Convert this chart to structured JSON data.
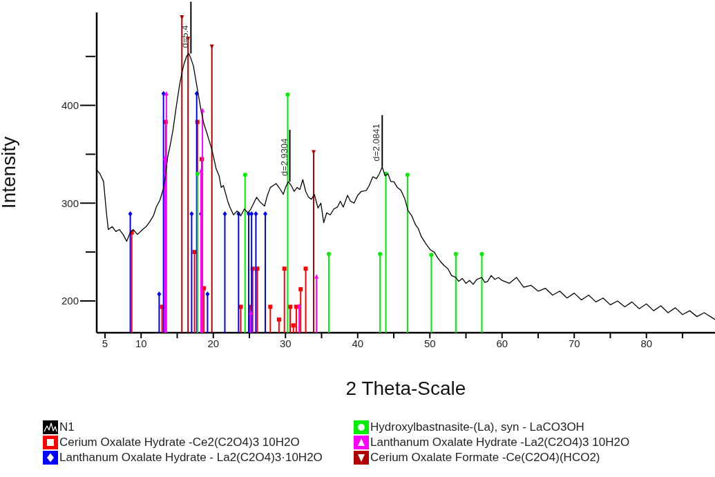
{
  "chart_data": {
    "type": "line",
    "xlabel": "2 Theta-Scale",
    "ylabel": "Intensity",
    "xlim": [
      3.85,
      89.5
    ],
    "ylim": [
      167.5,
      495
    ],
    "xticks": [
      5,
      10,
      {
        "value": 15,
        "label": null
      },
      20,
      {
        "value": 25,
        "label": null
      },
      30,
      {
        "value": 35,
        "label": null
      },
      40,
      {
        "value": 45,
        "label": null
      },
      50,
      {
        "value": 55,
        "label": null
      },
      60,
      {
        "value": 65,
        "label": null
      },
      70,
      {
        "value": 75,
        "label": null
      },
      80,
      {
        "value": 85,
        "label": null
      }
    ],
    "yticks": [
      200,
      {
        "value": 250,
        "label": null
      },
      300,
      {
        "value": 350,
        "label": null
      },
      400,
      {
        "value": 450,
        "label": null
      }
    ],
    "legend": "bottom",
    "annotations": [
      {
        "text": "d=5.4",
        "x": 16.9,
        "y": 453
      },
      {
        "text": "d=2.9304",
        "x": 30.6,
        "y": 322
      },
      {
        "text": "d=2.0841",
        "x": 43.4,
        "y": 337
      }
    ],
    "series": [
      {
        "name": "N1",
        "type": "line",
        "color": "#000000",
        "x": [
          3.85,
          4.3,
          4.8,
          5.2,
          5.45,
          6.0,
          6.5,
          7.0,
          7.5,
          8.0,
          8.5,
          8.9,
          9.5,
          10.2,
          10.7,
          11.2,
          11.7,
          12.1,
          12.6,
          13.1,
          13.4,
          13.7,
          14.0,
          14.4,
          14.86,
          15.33,
          15.7,
          15.97,
          16.3,
          16.6,
          16.9,
          17.25,
          17.6,
          17.9,
          18.3,
          18.7,
          19.1,
          19.5,
          19.8,
          20.4,
          20.8,
          21.1,
          21.4,
          21.7,
          22.0,
          22.3,
          22.8,
          23.3,
          23.8,
          24.3,
          24.8,
          25.2,
          25.6,
          26.0,
          26.5,
          27.1,
          27.5,
          27.9,
          28.3,
          28.7,
          29.2,
          29.7,
          30.0,
          30.4,
          30.8,
          31.2,
          31.6,
          32.0,
          32.4,
          32.8,
          33.2,
          33.6,
          34.0,
          34.5,
          34.9,
          35.3,
          35.7,
          36.2,
          36.7,
          37.2,
          37.6,
          38.0,
          38.6,
          39.0,
          39.5,
          40.0,
          40.5,
          41.2,
          41.6,
          42.1,
          42.6,
          43.0,
          43.4,
          43.8,
          44.2,
          44.6,
          45.0,
          45.5,
          46.0,
          46.5,
          47.0,
          47.5,
          48.0,
          48.4,
          48.8,
          49.5,
          50.1,
          50.6,
          51.0,
          51.5,
          52.0,
          52.5,
          53.0,
          53.6,
          54.0,
          54.5,
          55.0,
          55.5,
          56.0,
          56.5,
          57.2,
          57.6,
          58.0,
          58.5,
          59.0,
          59.5,
          60.0,
          61,
          62,
          63,
          64,
          65,
          66,
          67,
          68,
          69,
          70,
          71,
          72,
          73,
          74,
          75,
          76,
          77,
          78,
          79,
          80,
          81,
          82,
          83,
          84,
          85,
          86,
          87,
          88,
          89.5
        ],
        "values": [
          334,
          330,
          322,
          290,
          273,
          276,
          271,
          273,
          268,
          261,
          270,
          273,
          268,
          273,
          276,
          281,
          287,
          296,
          303,
          315,
          330,
          348,
          358,
          374,
          398,
          421,
          435,
          443,
          450,
          453,
          448,
          440,
          425,
          412,
          395,
          381,
          372,
          362,
          355,
          335,
          328,
          316,
          318,
          310,
          302,
          296,
          288,
          292,
          287,
          294,
          290,
          294,
          300,
          306,
          301,
          297,
          308,
          316,
          318,
          320,
          315,
          309,
          316,
          322,
          318,
          312,
          316,
          314,
          324,
          312,
          306,
          304,
          309,
          295,
          300,
          280,
          290,
          288,
          294,
          296,
          302,
          296,
          308,
          302,
          300,
          308,
          312,
          313,
          318,
          327,
          325,
          330,
          337,
          328,
          330,
          322,
          322,
          316,
          313,
          305,
          292,
          287,
          278,
          274,
          266,
          258,
          252,
          250,
          245,
          240,
          236,
          233,
          226,
          224,
          220,
          223,
          218,
          221,
          217,
          222,
          224,
          219,
          220,
          226,
          222,
          224,
          221,
          218,
          224,
          214,
          216,
          210,
          213,
          206,
          210,
          203,
          208,
          201,
          206,
          199,
          203,
          196,
          200,
          194,
          199,
          192,
          197,
          190,
          195,
          188,
          193,
          186,
          190,
          184,
          188,
          181
        ]
      },
      {
        "name": "Cerium Oxalate Hydrate -Ce2(C2O4)3 10H2O",
        "type": "lollipop",
        "marker": "square",
        "color": "#ff0000",
        "x": [
          8.7,
          12.9,
          13.4,
          17.4,
          17.8,
          18.4,
          18.7,
          23.8,
          25.1,
          25.45,
          26.1,
          27.9,
          29.1,
          29.85,
          30.65,
          31.1,
          31.5,
          32.1,
          32.8
        ],
        "values": [
          270,
          194,
          383,
          250,
          383,
          345,
          213,
          194,
          194,
          233,
          233,
          194,
          181,
          233,
          194,
          175,
          194,
          212,
          233
        ]
      },
      {
        "name": "Lanthanum Oxalate Hydrate - La2(C2O4)3·10H2O",
        "type": "lollipop",
        "marker": "diamond",
        "color": "#0000ff",
        "x": [
          8.5,
          12.5,
          13.1,
          17.0,
          17.7,
          18.3,
          19.2,
          21.6,
          23.5,
          24.9,
          25.3,
          25.9,
          27.2
        ],
        "values": [
          289,
          207,
          412,
          289,
          412,
          289,
          207,
          289,
          289,
          289,
          289,
          289,
          289
        ]
      },
      {
        "name": "Hydroxylbastnasite-(La), syn - LaCO3OH",
        "type": "lollipop",
        "marker": "circle",
        "color": "#00ee00",
        "x": [
          17.8,
          24.4,
          30.3,
          36.0,
          43.1,
          43.9,
          46.9,
          50.2,
          53.6,
          57.2
        ],
        "values": [
          330,
          329,
          411,
          248,
          248,
          330,
          329,
          247,
          248,
          248
        ]
      },
      {
        "name": "Lanthanum Oxalate Hydrate -La2(C2O4)3 10H2O",
        "type": "lollipop",
        "marker": "triangle",
        "color": "#ff00ff",
        "x": [
          13.3,
          13.5,
          18.3,
          18.5,
          25.2,
          31.9,
          34.3
        ],
        "values": [
          346,
          412,
          333,
          395,
          188,
          195,
          225
        ]
      },
      {
        "name": "Cerium Oxalate Formate -Ce(C2O4)(HCO2)",
        "type": "lollipop",
        "marker": "triangle-down",
        "color": "#b00000",
        "x": [
          15.65,
          16.5,
          19.8,
          33.9
        ],
        "values": [
          490,
          468,
          460,
          352
        ]
      }
    ]
  }
}
